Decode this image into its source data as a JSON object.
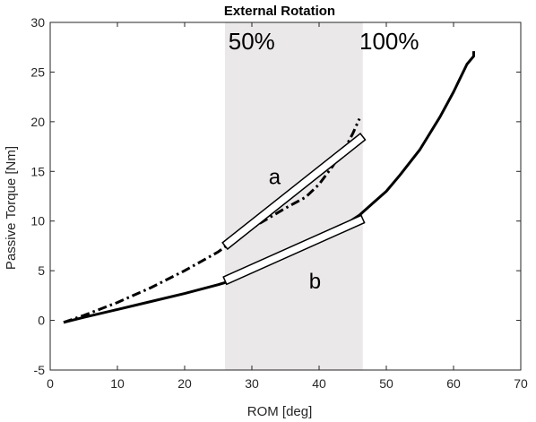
{
  "chart_data": {
    "type": "line",
    "title": "External Rotation",
    "xlabel": "ROM [deg]",
    "ylabel": "Passive Torque [Nm]",
    "xlim": [
      0,
      70
    ],
    "ylim": [
      -5,
      30
    ],
    "xticks": [
      0,
      10,
      20,
      30,
      40,
      50,
      60,
      70
    ],
    "yticks": [
      -5,
      0,
      5,
      10,
      15,
      20,
      25,
      30
    ],
    "grid": false,
    "shaded_region": {
      "x": [
        26,
        46.5
      ],
      "color": "#ebe8ea"
    },
    "annotations": [
      {
        "text": "50%",
        "x": 26.5,
        "y": 27.3
      },
      {
        "text": "100%",
        "x": 46,
        "y": 27.3
      },
      {
        "text": "a",
        "x": 32.5,
        "y": 13.7
      },
      {
        "text": "b",
        "x": 38.5,
        "y": 3.2
      }
    ],
    "fit_bars": [
      {
        "name": "a",
        "x": [
          26,
          46.5
        ],
        "y": [
          7.5,
          18.5
        ]
      },
      {
        "name": "b",
        "x": [
          26,
          46.5
        ],
        "y": [
          4,
          10.2
        ]
      }
    ],
    "series": [
      {
        "style": "solid",
        "color": "#000000",
        "x": [
          2,
          5,
          10,
          15,
          20,
          25,
          26,
          30,
          35,
          40,
          44,
          46,
          48,
          50,
          52,
          55,
          58,
          60,
          62,
          63,
          63
        ],
        "y": [
          -0.2,
          0.3,
          1.1,
          1.9,
          2.7,
          3.6,
          3.8,
          4.9,
          6.5,
          8.3,
          9.7,
          10.6,
          11.8,
          13.0,
          14.6,
          17.2,
          20.5,
          23.0,
          25.8,
          26.6,
          27.1
        ]
      },
      {
        "style": "dashdot",
        "color": "#000000",
        "x": [
          2,
          5,
          10,
          15,
          20,
          25,
          26,
          30,
          35,
          38,
          40,
          42,
          44,
          45,
          46
        ],
        "y": [
          -0.2,
          0.5,
          1.8,
          3.3,
          5.0,
          6.9,
          7.4,
          9.3,
          11.3,
          12.4,
          13.7,
          15.5,
          17.5,
          18.8,
          20.3
        ]
      }
    ]
  }
}
